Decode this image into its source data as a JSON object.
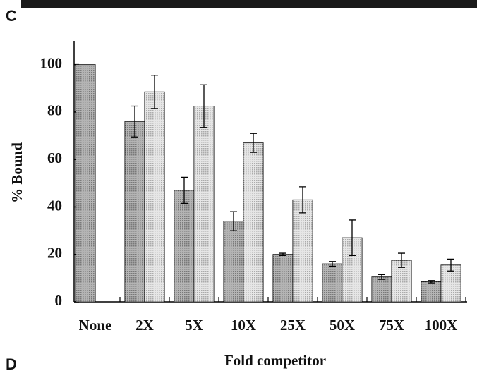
{
  "panel_labels": [
    "C",
    "D"
  ],
  "chart_data": {
    "type": "bar",
    "ylabel": "% Bound",
    "xlabel": "Fold competitor",
    "categories": [
      "None",
      "2X",
      "5X",
      "10X",
      "25X",
      "50X",
      "75X",
      "100X"
    ],
    "series": [
      {
        "color": "#8c8c8c",
        "values": [
          100,
          76,
          47,
          34,
          20,
          16,
          10.5,
          8.5
        ],
        "errors": [
          null,
          6.5,
          5.5,
          4,
          0.5,
          1,
          1,
          0.5
        ]
      },
      {
        "color": "#d9d9d9",
        "values": [
          null,
          88.5,
          82.5,
          67,
          43,
          27,
          17.5,
          15.5
        ],
        "errors": [
          null,
          7,
          9,
          4,
          5.5,
          7.5,
          3,
          2.5
        ]
      }
    ],
    "ylim": [
      0,
      110
    ],
    "yticks": [
      0,
      20,
      40,
      60,
      80,
      100
    ]
  }
}
